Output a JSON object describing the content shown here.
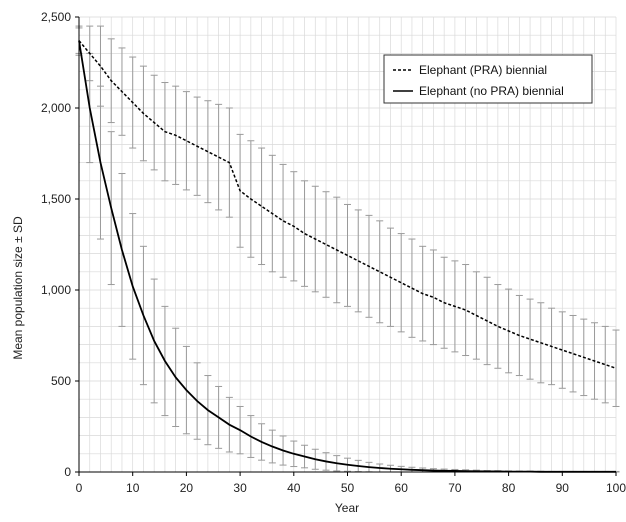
{
  "chart_data": {
    "type": "line",
    "title": "",
    "xlabel": "Year",
    "ylabel": "Mean population size ± SD",
    "xlim": [
      0,
      100
    ],
    "ylim": [
      0,
      2500
    ],
    "x_ticks": [
      0,
      10,
      20,
      30,
      40,
      50,
      60,
      70,
      80,
      90,
      100
    ],
    "y_ticks": [
      0,
      500,
      1000,
      1500,
      2000,
      2500
    ],
    "y_tick_labels": [
      "0",
      "500",
      "1,000",
      "1,500",
      "2,000",
      "2,500"
    ],
    "grid": true,
    "legend_position": "top-right",
    "series": [
      {
        "name": "Elephant (PRA) biennial",
        "style": "dashed",
        "color": "#000000",
        "x": [
          0,
          2,
          4,
          6,
          8,
          10,
          12,
          14,
          16,
          18,
          20,
          22,
          24,
          26,
          28,
          30,
          32,
          34,
          36,
          38,
          40,
          42,
          44,
          46,
          48,
          50,
          52,
          54,
          56,
          58,
          60,
          62,
          64,
          66,
          68,
          70,
          72,
          74,
          76,
          78,
          80,
          82,
          84,
          86,
          88,
          90,
          92,
          94,
          96,
          98,
          100
        ],
        "mean": [
          2370,
          2300,
          2230,
          2150,
          2090,
          2030,
          1970,
          1920,
          1870,
          1850,
          1820,
          1790,
          1760,
          1730,
          1700,
          1545,
          1500,
          1460,
          1420,
          1380,
          1350,
          1310,
          1280,
          1250,
          1220,
          1190,
          1160,
          1130,
          1100,
          1070,
          1040,
          1010,
          980,
          960,
          930,
          910,
          890,
          860,
          830,
          800,
          775,
          750,
          730,
          710,
          690,
          670,
          650,
          630,
          610,
          590,
          570
        ],
        "sd": [
          70,
          150,
          220,
          230,
          240,
          250,
          260,
          260,
          270,
          270,
          270,
          270,
          280,
          290,
          300,
          310,
          320,
          320,
          320,
          310,
          300,
          290,
          290,
          290,
          290,
          280,
          280,
          280,
          280,
          270,
          270,
          270,
          260,
          260,
          250,
          250,
          250,
          240,
          240,
          230,
          230,
          220,
          220,
          220,
          210,
          210,
          210,
          210,
          210,
          210,
          210
        ]
      },
      {
        "name": "Elephant (no PRA) biennial",
        "style": "solid",
        "color": "#000000",
        "x": [
          0,
          2,
          4,
          6,
          8,
          10,
          12,
          14,
          16,
          18,
          20,
          22,
          24,
          26,
          28,
          30,
          32,
          34,
          36,
          38,
          40,
          42,
          44,
          46,
          48,
          50,
          52,
          54,
          56,
          58,
          60,
          62,
          64,
          66,
          68,
          70,
          72,
          74,
          76,
          78,
          80,
          82,
          84,
          86,
          88,
          90,
          92,
          94,
          96,
          98,
          100
        ],
        "mean": [
          2370,
          2000,
          1700,
          1450,
          1220,
          1020,
          860,
          720,
          610,
          520,
          450,
          390,
          340,
          300,
          260,
          230,
          195,
          165,
          140,
          118,
          100,
          85,
          70,
          58,
          48,
          40,
          33,
          27,
          22,
          18,
          15,
          12,
          10,
          8,
          7,
          6,
          5,
          4,
          3,
          3,
          2,
          2,
          2,
          1,
          1,
          1,
          1,
          1,
          1,
          1,
          1
        ],
        "sd": [
          80,
          300,
          420,
          420,
          420,
          400,
          380,
          340,
          300,
          270,
          240,
          210,
          190,
          170,
          150,
          130,
          115,
          100,
          90,
          80,
          70,
          62,
          55,
          48,
          42,
          36,
          31,
          26,
          22,
          19,
          16,
          14,
          12,
          10,
          9,
          8,
          7,
          6,
          5,
          4,
          4,
          3,
          3,
          3,
          2,
          2,
          2,
          2,
          2,
          2,
          2
        ]
      }
    ]
  }
}
